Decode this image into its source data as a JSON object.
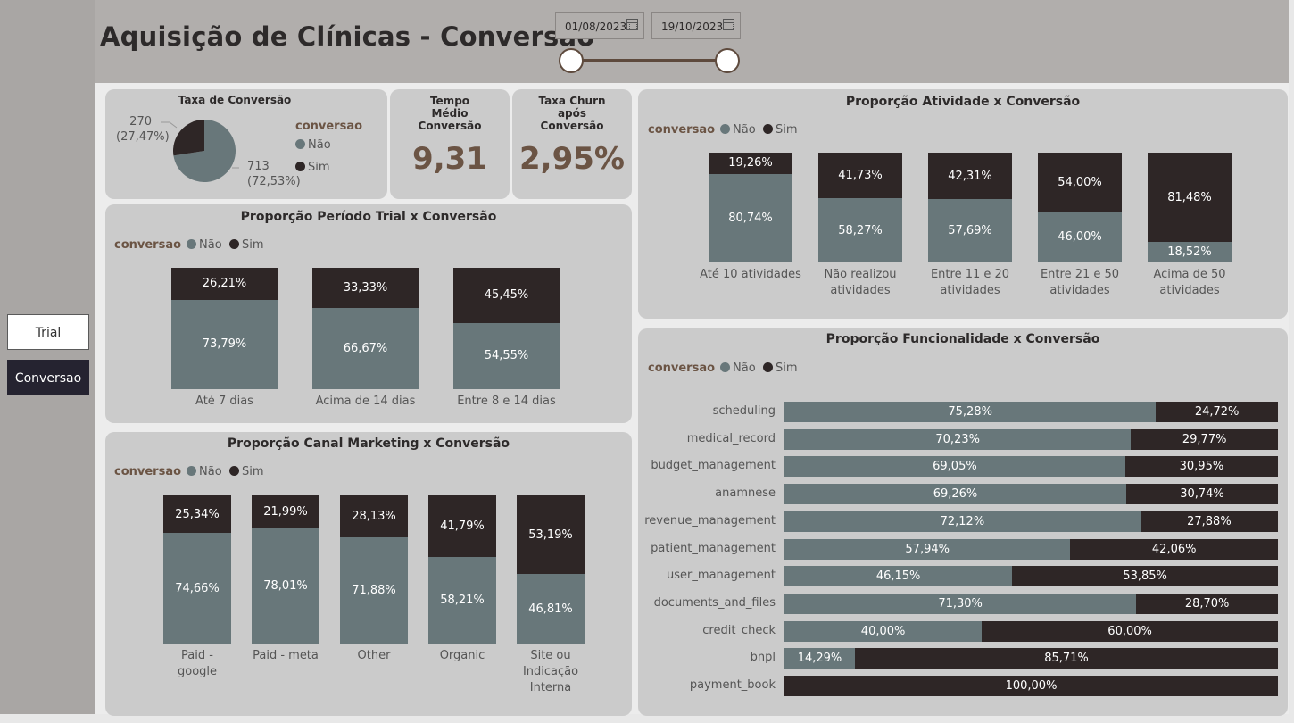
{
  "title": "Aquisição de Clínicas - Conversão",
  "date_filter": {
    "start": "01/08/2023",
    "end": "19/10/2023"
  },
  "nav": {
    "trial": "Trial",
    "conversao": "Conversao"
  },
  "colors": {
    "nao": "#68777a",
    "sim": "#2e2626",
    "accent": "#6b5444"
  },
  "legend": {
    "title": "conversao",
    "nao": "Não",
    "sim": "Sim"
  },
  "kpis": {
    "tempo_title": "Tempo Médio Conversão",
    "tempo_value": "9,31",
    "churn_title": "Taxa Churn após Conversão",
    "churn_value": "2,95%"
  },
  "chart_data": [
    {
      "type": "pie",
      "title": "Taxa de Conversão",
      "legend_title": "conversao",
      "slices": [
        {
          "name": "Não",
          "value": 713,
          "label": "713",
          "pct_label": "(72,53%)"
        },
        {
          "name": "Sim",
          "value": 270,
          "label": "270",
          "pct_label": "(27,47%)"
        }
      ]
    },
    {
      "type": "bar",
      "title": "Proporção Período Trial x Conversão",
      "categories": [
        "Até 7 dias",
        "Acima de 14 dias",
        "Entre 8 e 14 dias"
      ],
      "series": [
        {
          "name": "Não",
          "values": [
            73.79,
            66.67,
            54.55
          ],
          "labels": [
            "73,79%",
            "66,67%",
            "54,55%"
          ]
        },
        {
          "name": "Sim",
          "values": [
            26.21,
            33.33,
            45.45
          ],
          "labels": [
            "26,21%",
            "33,33%",
            "45,45%"
          ]
        }
      ]
    },
    {
      "type": "bar",
      "title": "Proporção Canal Marketing x Conversão",
      "categories": [
        "Paid - google",
        "Paid - meta",
        "Other",
        "Organic",
        "Site ou Indicação Interna"
      ],
      "series": [
        {
          "name": "Não",
          "values": [
            74.66,
            78.01,
            71.88,
            58.21,
            46.81
          ],
          "labels": [
            "74,66%",
            "78,01%",
            "71,88%",
            "58,21%",
            "46,81%"
          ]
        },
        {
          "name": "Sim",
          "values": [
            25.34,
            21.99,
            28.13,
            41.79,
            53.19
          ],
          "labels": [
            "25,34%",
            "21,99%",
            "28,13%",
            "41,79%",
            "53,19%"
          ]
        }
      ]
    },
    {
      "type": "bar",
      "title": "Proporção Atividade x Conversão",
      "categories": [
        "Até 10 atividades",
        "Não realizou atividades",
        "Entre 11 e 20 atividades",
        "Entre 21 e 50 atividades",
        "Acima de 50 atividades"
      ],
      "series": [
        {
          "name": "Não",
          "values": [
            80.74,
            58.27,
            57.69,
            46.0,
            18.52
          ],
          "labels": [
            "80,74%",
            "58,27%",
            "57,69%",
            "46,00%",
            "18,52%"
          ]
        },
        {
          "name": "Sim",
          "values": [
            19.26,
            41.73,
            42.31,
            54.0,
            81.48
          ],
          "labels": [
            "19,26%",
            "41,73%",
            "42,31%",
            "54,00%",
            "81,48%"
          ]
        }
      ]
    },
    {
      "type": "bar",
      "orientation": "horizontal",
      "title": "Proporção Funcionalidade x Conversão",
      "categories": [
        "scheduling",
        "medical_record",
        "budget_management",
        "anamnese",
        "revenue_management",
        "patient_management",
        "user_management",
        "documents_and_files",
        "credit_check",
        "bnpl",
        "payment_book"
      ],
      "series": [
        {
          "name": "Não",
          "values": [
            75.28,
            70.23,
            69.05,
            69.26,
            72.12,
            57.94,
            46.15,
            71.3,
            40.0,
            14.29,
            0
          ],
          "labels": [
            "75,28%",
            "70,23%",
            "69,05%",
            "69,26%",
            "72,12%",
            "57,94%",
            "46,15%",
            "71,30%",
            "40,00%",
            "14,29%",
            ""
          ]
        },
        {
          "name": "Sim",
          "values": [
            24.72,
            29.77,
            30.95,
            30.74,
            27.88,
            42.06,
            53.85,
            28.7,
            60.0,
            85.71,
            100.0
          ],
          "labels": [
            "24,72%",
            "29,77%",
            "30,95%",
            "30,74%",
            "27,88%",
            "42,06%",
            "53,85%",
            "28,70%",
            "60,00%",
            "85,71%",
            "100,00%"
          ]
        }
      ]
    }
  ]
}
